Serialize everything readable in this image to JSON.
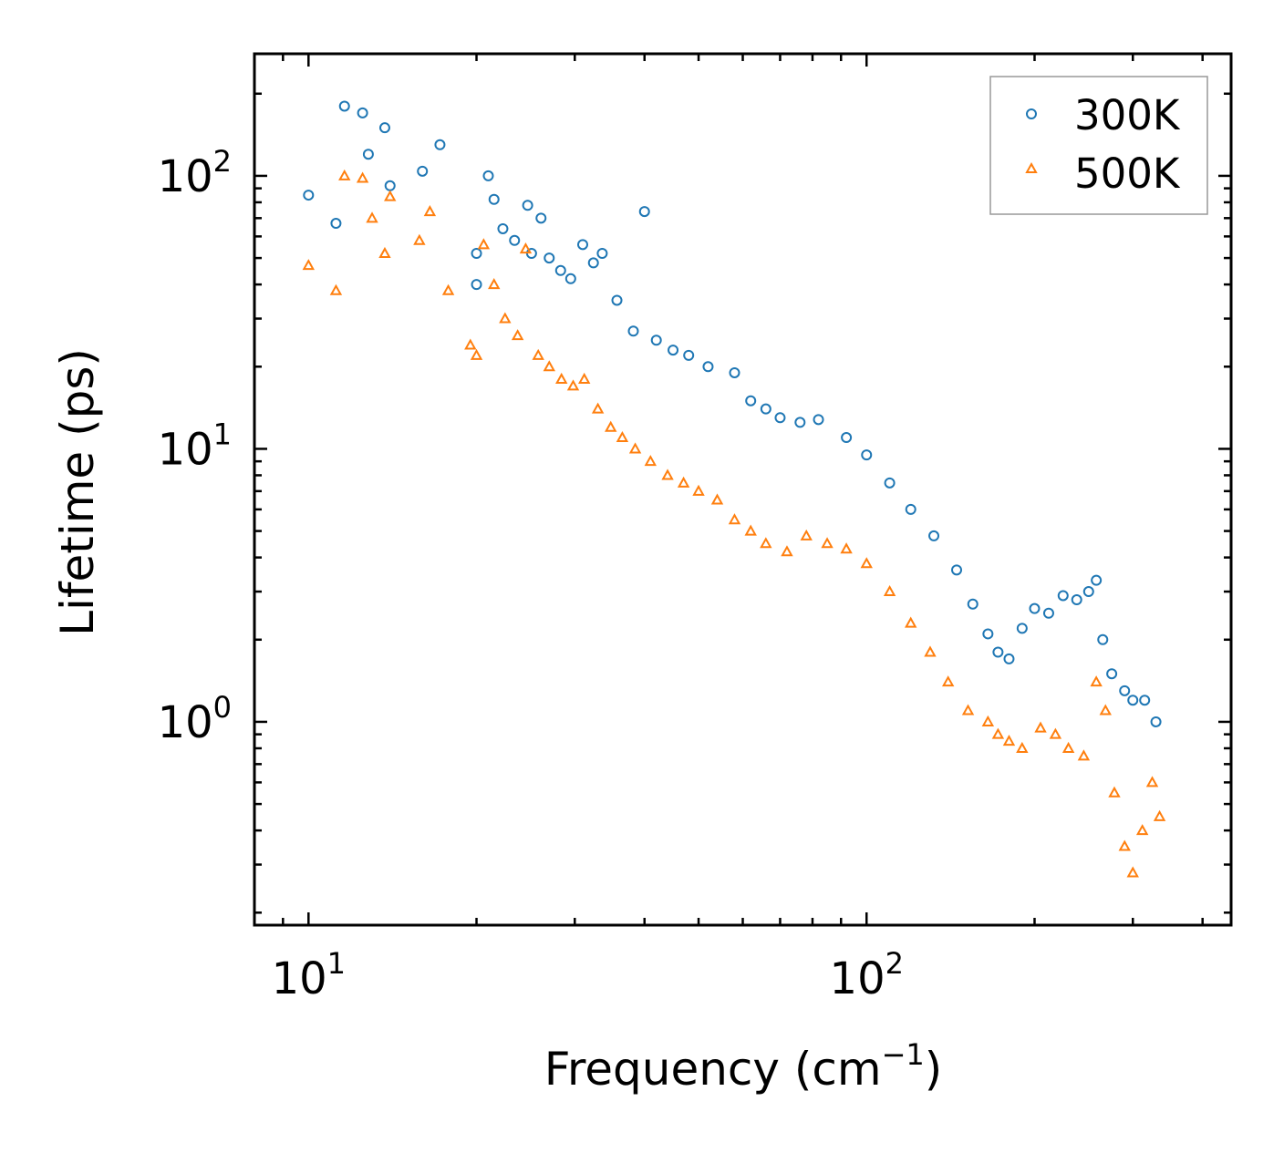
{
  "chart_data": {
    "type": "scatter",
    "xscale": "log",
    "yscale": "log",
    "xlim": [
      8,
      450
    ],
    "ylim": [
      0.18,
      280
    ],
    "xlabel": "Frequency (cm",
    "xlabel_sup": "−1",
    "xlabel_end": ")",
    "ylabel": "Lifetime (ps)",
    "x_ticks": [
      {
        "value": 10,
        "base": "10",
        "exp": "1"
      },
      {
        "value": 100,
        "base": "10",
        "exp": "2"
      }
    ],
    "y_ticks": [
      {
        "value": 1,
        "base": "10",
        "exp": "0"
      },
      {
        "value": 10,
        "base": "10",
        "exp": "1"
      },
      {
        "value": 100,
        "base": "10",
        "exp": "2"
      }
    ],
    "legend_position": "top-right",
    "series": [
      {
        "name": "300K",
        "marker": "circle",
        "color": "#1f77b4",
        "x": [
          10.0,
          11.2,
          11.6,
          12.5,
          12.8,
          13.7,
          14.0,
          16.0,
          17.2,
          20.0,
          20.0,
          21.0,
          21.5,
          22.3,
          23.4,
          24.7,
          25.1,
          26.1,
          27.0,
          28.3,
          29.5,
          31.0,
          32.4,
          33.6,
          35.7,
          38.2,
          40.0,
          42.0,
          45.0,
          48.0,
          52.0,
          58.0,
          62.0,
          66.0,
          70.0,
          76.0,
          82.0,
          92.0,
          100.0,
          110.0,
          120.0,
          132.0,
          145.0,
          155.0,
          165.0,
          172.0,
          180.0,
          190.0,
          200.0,
          212.0,
          225.0,
          238.0,
          250.0,
          258.0,
          265.0,
          275.0,
          290.0,
          300.0,
          315.0,
          330.0
        ],
        "y": [
          85,
          67,
          180,
          170,
          120,
          150,
          92,
          104,
          130,
          52,
          40,
          100,
          82,
          64,
          58,
          78,
          52,
          70,
          50,
          45,
          42,
          56,
          48,
          52,
          35,
          27,
          74,
          25,
          23,
          22,
          20,
          19,
          15,
          14,
          13,
          12.5,
          12.8,
          11,
          9.5,
          7.5,
          6,
          4.8,
          3.6,
          2.7,
          2.1,
          1.8,
          1.7,
          2.2,
          2.6,
          2.5,
          2.9,
          2.8,
          3.0,
          3.3,
          2.0,
          1.5,
          1.3,
          1.2,
          1.2,
          1.0
        ]
      },
      {
        "name": "500K",
        "marker": "triangle",
        "color": "#ff7f0e",
        "x": [
          10.0,
          11.2,
          11.6,
          12.5,
          13.0,
          13.7,
          14.0,
          15.8,
          16.5,
          17.8,
          19.5,
          20.0,
          20.6,
          21.5,
          22.5,
          23.7,
          24.5,
          25.8,
          27.0,
          28.4,
          29.8,
          31.2,
          33.0,
          34.8,
          36.5,
          38.5,
          41.0,
          44.0,
          47.0,
          50.0,
          54.0,
          58.0,
          62.0,
          66.0,
          72.0,
          78.0,
          85.0,
          92.0,
          100.0,
          110.0,
          120.0,
          130.0,
          140.0,
          152.0,
          165.0,
          172.0,
          180.0,
          190.0,
          205.0,
          218.0,
          230.0,
          245.0,
          258.0,
          268.0,
          278.0,
          290.0,
          300.0,
          312.0,
          325.0,
          335.0
        ],
        "y": [
          47,
          38,
          100,
          98,
          70,
          52,
          84,
          58,
          74,
          38,
          24,
          22,
          56,
          40,
          30,
          26,
          54,
          22,
          20,
          18,
          17,
          18,
          14,
          12,
          11,
          10,
          9,
          8,
          7.5,
          7,
          6.5,
          5.5,
          5,
          4.5,
          4.2,
          4.8,
          4.5,
          4.3,
          3.8,
          3.0,
          2.3,
          1.8,
          1.4,
          1.1,
          1.0,
          0.9,
          0.85,
          0.8,
          0.95,
          0.9,
          0.8,
          0.75,
          1.4,
          1.1,
          0.55,
          0.35,
          0.28,
          0.4,
          0.6,
          0.45
        ]
      }
    ]
  }
}
